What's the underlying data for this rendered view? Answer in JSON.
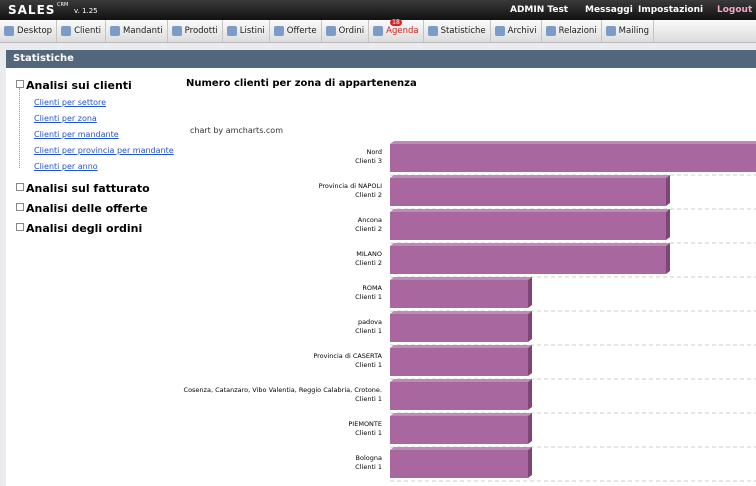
{
  "header": {
    "brand": "SALES",
    "brand_sup": "CRM",
    "version": "v. 1.25",
    "user": "ADMIN Test",
    "messages": "Messaggi",
    "settings": "Impostazioni",
    "logout": "Logout"
  },
  "nav": {
    "items": [
      "Desktop",
      "Clienti",
      "Mandanti",
      "Prodotti",
      "Listini",
      "Offerte",
      "Ordini",
      "Agenda",
      "Statistiche",
      "Archivi",
      "Relazioni",
      "Mailing"
    ],
    "agenda_badge": "18"
  },
  "panel": {
    "title": "Statistiche"
  },
  "tree": {
    "groups": [
      {
        "label": "Analisi sui clienti",
        "items": [
          "Clienti per settore",
          "Clienti per zona",
          "Clienti per mandante",
          "Clienti per provincia per mandante",
          "Clienti per anno"
        ]
      },
      {
        "label": "Analisi sul fatturato",
        "items": []
      },
      {
        "label": "Analisi delle offerte",
        "items": []
      },
      {
        "label": "Analisi degli ordini",
        "items": []
      }
    ]
  },
  "chart_data": {
    "type": "bar",
    "orientation": "horizontal",
    "title": "Numero clienti per zona di appartenenza",
    "credit": "chart by amcharts.com",
    "categories": [
      "Nord",
      "Provincia di NAPOLI",
      "Ancona",
      "MILANO",
      "ROMA",
      "padova",
      "Provincia di CASERTA",
      "Cosenza, Catanzaro, Vibo Valentia, Reggio Calabria, Crotone.",
      "PIEMONTE",
      "Bologna"
    ],
    "values": [
      3,
      2,
      2,
      2,
      1,
      1,
      1,
      1,
      1,
      1
    ],
    "value_labels": [
      "Clienti 3",
      "Clienti 2",
      "Clienti 2",
      "Clienti 2",
      "Clienti 1",
      "Clienti 1",
      "Clienti 1",
      "Clienti 1",
      "Clienti 1",
      "Clienti 1"
    ],
    "color": "#a8679e",
    "xlim": [
      0,
      3
    ]
  }
}
